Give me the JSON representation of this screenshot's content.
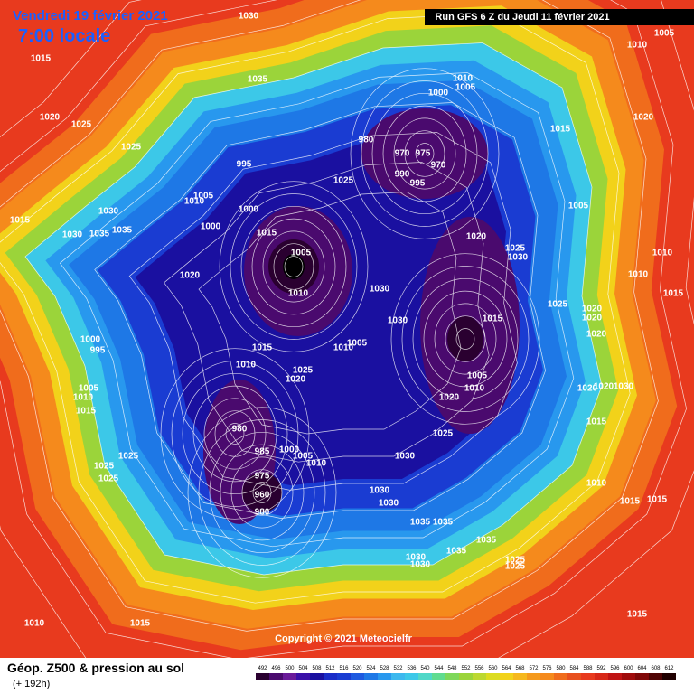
{
  "header": {
    "date": "Vendredi 19 février 2021",
    "time": "7:00 locale",
    "run": "Run GFS 6 Z du Jeudi 11 février 2021"
  },
  "copyright": "Copyright © 2021 Meteocielfr",
  "footer": {
    "title": "Géop. Z500 & pression au sol",
    "lead": "(+ 192h)"
  },
  "isobar_labels": [
    1030,
    1015,
    1020,
    1025,
    1025,
    1035,
    1010,
    1005,
    1000,
    1010,
    1005,
    1020,
    1015,
    980,
    970,
    975,
    970,
    990,
    995,
    1025,
    995,
    1005,
    1010,
    1000,
    1000,
    1015,
    1030,
    1030,
    1035,
    1035,
    1015,
    1005,
    1010,
    1020,
    1030,
    1030,
    1015,
    1020,
    1025,
    1030,
    1005,
    1010,
    1010,
    1015,
    1025,
    1020,
    1020,
    1020,
    1000,
    995,
    1015,
    1010,
    1005,
    1010,
    1025,
    1020,
    1005,
    1010,
    1015,
    1005,
    1010,
    1020,
    1025,
    1020,
    1020,
    1030,
    1015,
    980,
    985,
    1000,
    1005,
    1010,
    1030,
    975,
    960,
    980,
    1025,
    1025,
    1025,
    1030,
    1030,
    1035,
    1035,
    1035,
    1035,
    1030,
    1030,
    1025,
    1025,
    1010,
    1015,
    1015,
    1010,
    1015,
    1015
  ],
  "scale": {
    "labels": [
      492,
      496,
      500,
      504,
      508,
      512,
      516,
      520,
      524,
      528,
      532,
      536,
      540,
      544,
      548,
      552,
      556,
      560,
      564,
      568,
      572,
      576,
      580,
      584,
      588,
      592,
      596,
      600,
      604,
      608,
      612
    ],
    "colors": [
      "#2a0030",
      "#4a0a6e",
      "#6a1a9a",
      "#3a10a8",
      "#1a10a0",
      "#1a2cc8",
      "#1a3cd2",
      "#1e5ae0",
      "#1e78e6",
      "#2898ee",
      "#3cb8ee",
      "#3cc8e8",
      "#50d8c8",
      "#60dc90",
      "#7ed85a",
      "#9bd43a",
      "#bcd830",
      "#dcdc20",
      "#f2d21a",
      "#f6b81c",
      "#f59a1c",
      "#f58a1c",
      "#f06c1c",
      "#e8501e",
      "#e83a1e",
      "#d82818",
      "#c01414",
      "#a00c0c",
      "#800808",
      "#500404",
      "#200000"
    ]
  }
}
